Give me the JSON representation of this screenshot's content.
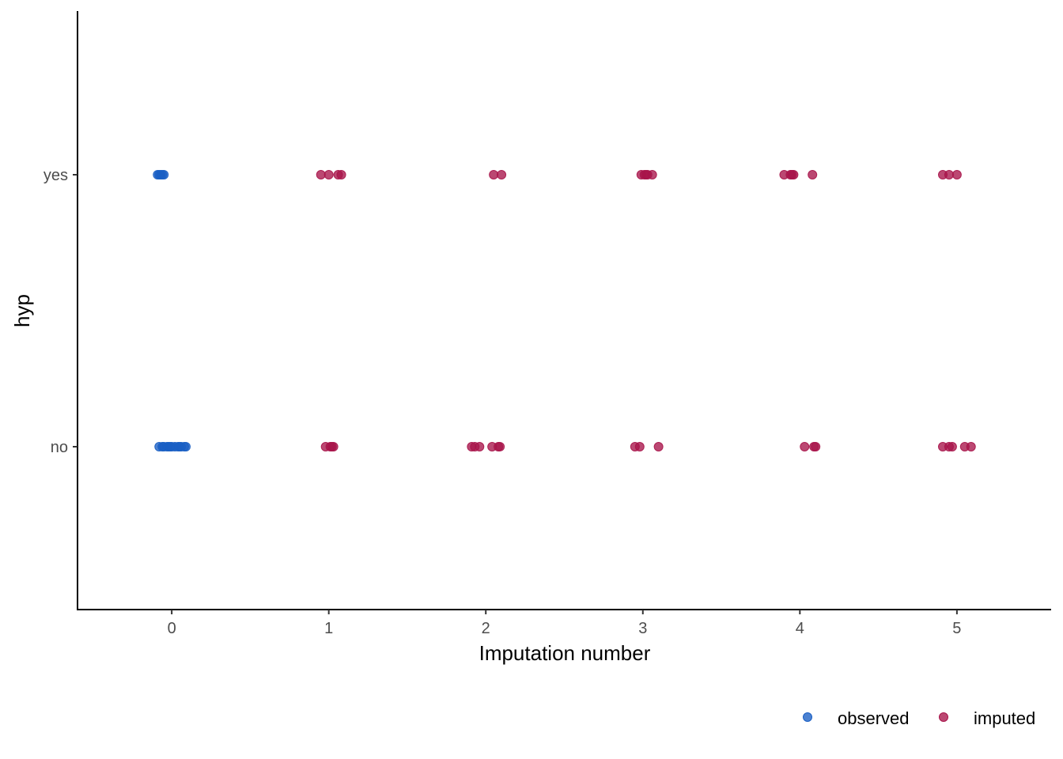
{
  "chart_data": {
    "type": "scatter",
    "xlabel": "Imputation number",
    "ylabel": "hyp",
    "xlim": [
      -0.6,
      5.6
    ],
    "x_ticks": [
      "0",
      "1",
      "2",
      "3",
      "4",
      "5"
    ],
    "y_categories": [
      "no",
      "yes"
    ],
    "grid": false,
    "legend_position": "bottom-right",
    "series": [
      {
        "name": "observed",
        "color": "#1a5fc4",
        "points": [
          {
            "x": -0.09,
            "y": "yes"
          },
          {
            "x": -0.08,
            "y": "yes"
          },
          {
            "x": -0.07,
            "y": "yes"
          },
          {
            "x": -0.06,
            "y": "yes"
          },
          {
            "x": -0.05,
            "y": "yes"
          },
          {
            "x": -0.08,
            "y": "no"
          },
          {
            "x": -0.06,
            "y": "no"
          },
          {
            "x": -0.05,
            "y": "no"
          },
          {
            "x": -0.03,
            "y": "no"
          },
          {
            "x": -0.02,
            "y": "no"
          },
          {
            "x": -0.01,
            "y": "no"
          },
          {
            "x": 0.0,
            "y": "no"
          },
          {
            "x": 0.02,
            "y": "no"
          },
          {
            "x": 0.04,
            "y": "no"
          },
          {
            "x": 0.05,
            "y": "no"
          },
          {
            "x": 0.06,
            "y": "no"
          },
          {
            "x": 0.08,
            "y": "no"
          },
          {
            "x": 0.09,
            "y": "no"
          }
        ]
      },
      {
        "name": "imputed",
        "color": "#a8144a",
        "points": [
          {
            "x": 0.95,
            "y": "yes"
          },
          {
            "x": 1.0,
            "y": "yes"
          },
          {
            "x": 1.06,
            "y": "yes"
          },
          {
            "x": 1.08,
            "y": "yes"
          },
          {
            "x": 0.98,
            "y": "no"
          },
          {
            "x": 1.01,
            "y": "no"
          },
          {
            "x": 1.02,
            "y": "no"
          },
          {
            "x": 1.03,
            "y": "no"
          },
          {
            "x": 2.05,
            "y": "yes"
          },
          {
            "x": 2.1,
            "y": "yes"
          },
          {
            "x": 1.91,
            "y": "no"
          },
          {
            "x": 1.93,
            "y": "no"
          },
          {
            "x": 1.96,
            "y": "no"
          },
          {
            "x": 2.04,
            "y": "no"
          },
          {
            "x": 2.08,
            "y": "no"
          },
          {
            "x": 2.09,
            "y": "no"
          },
          {
            "x": 2.99,
            "y": "yes"
          },
          {
            "x": 3.01,
            "y": "yes"
          },
          {
            "x": 3.02,
            "y": "yes"
          },
          {
            "x": 3.03,
            "y": "yes"
          },
          {
            "x": 3.06,
            "y": "yes"
          },
          {
            "x": 2.95,
            "y": "no"
          },
          {
            "x": 2.98,
            "y": "no"
          },
          {
            "x": 3.1,
            "y": "no"
          },
          {
            "x": 3.9,
            "y": "yes"
          },
          {
            "x": 3.94,
            "y": "yes"
          },
          {
            "x": 3.95,
            "y": "yes"
          },
          {
            "x": 3.96,
            "y": "yes"
          },
          {
            "x": 4.08,
            "y": "yes"
          },
          {
            "x": 4.03,
            "y": "no"
          },
          {
            "x": 4.09,
            "y": "no"
          },
          {
            "x": 4.1,
            "y": "no"
          },
          {
            "x": 4.91,
            "y": "yes"
          },
          {
            "x": 4.95,
            "y": "yes"
          },
          {
            "x": 5.0,
            "y": "yes"
          },
          {
            "x": 4.91,
            "y": "no"
          },
          {
            "x": 4.95,
            "y": "no"
          },
          {
            "x": 4.97,
            "y": "no"
          },
          {
            "x": 5.05,
            "y": "no"
          },
          {
            "x": 5.09,
            "y": "no"
          }
        ]
      }
    ]
  }
}
